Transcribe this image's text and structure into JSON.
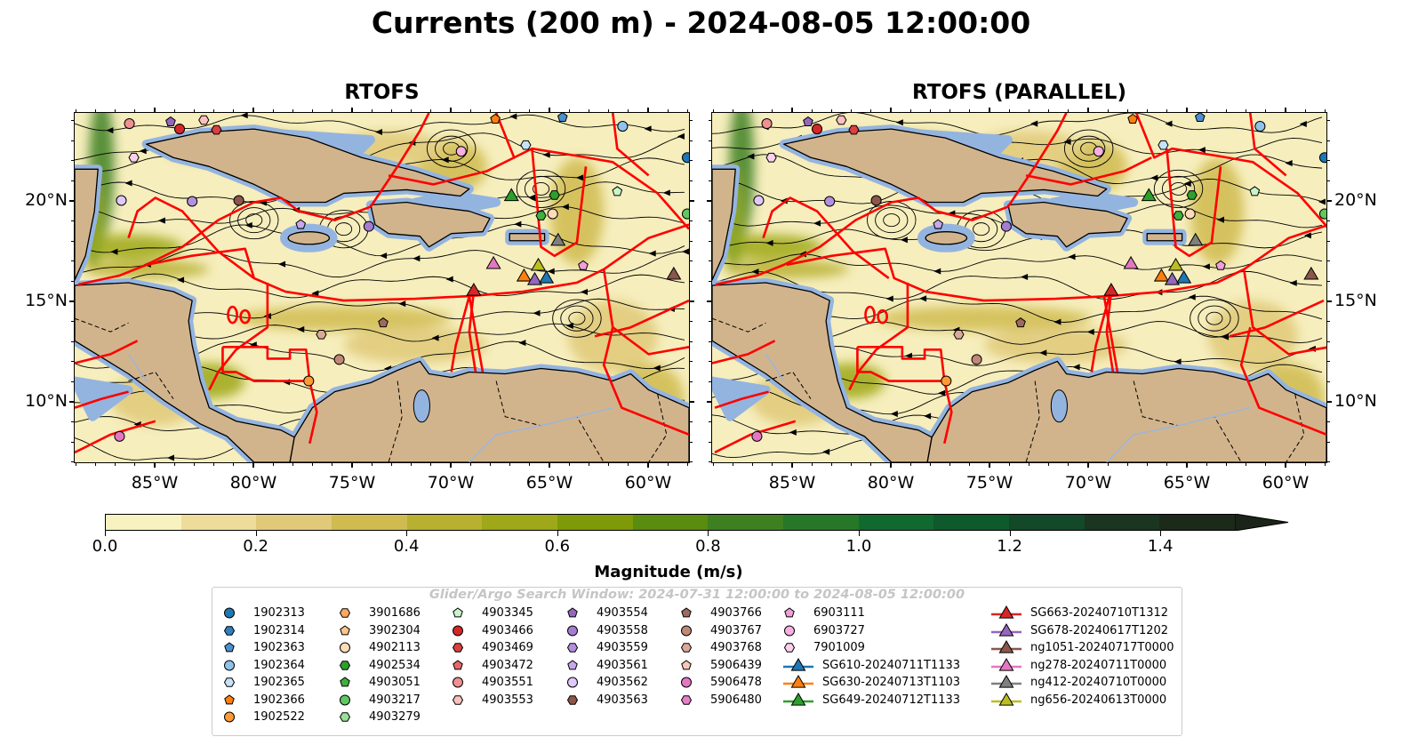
{
  "title": "Currents (200 m) - 2024-08-05 12:00:00",
  "panels": [
    {
      "title": "RTOFS"
    },
    {
      "title": "RTOFS (PARALLEL)"
    }
  ],
  "lon_labels": [
    "85°W",
    "80°W",
    "75°W",
    "70°W",
    "65°W",
    "60°W"
  ],
  "lat_labels": [
    "20°N",
    "15°N",
    "10°N"
  ],
  "colorbar": {
    "label": "Magnitude (m/s)",
    "ticks": [
      "0.0",
      "0.2",
      "0.4",
      "0.6",
      "0.8",
      "1.0",
      "1.2",
      "1.4"
    ],
    "range": [
      0,
      1.5
    ],
    "extend": "max",
    "colors": [
      "#f8f2c0",
      "#eedd9a",
      "#e0c978",
      "#d0bb50",
      "#b8b030",
      "#9ea818",
      "#7e9a08",
      "#5a8c10",
      "#3e8020",
      "#267828",
      "#106a30",
      "#0e5a2c",
      "#134828",
      "#1a3620",
      "#1c2a1a"
    ],
    "extend_color": "#1a2418"
  },
  "map_colors": {
    "ocean": "#f6eebd",
    "land": "#d2b48c",
    "shelf": "#94b4e0",
    "boundaries": "#ff0000"
  },
  "legend": {
    "watermark": "Glider/Argo Search Window: 2024-07-31 12:00:00 to 2024-08-05 12:00:00",
    "columns": [
      [
        {
          "label": "1902313",
          "marker": "circle",
          "color": "#1f77b4"
        },
        {
          "label": "1902314",
          "marker": "hexagon",
          "color": "#2f7fc1"
        },
        {
          "label": "1902363",
          "marker": "pentagon",
          "color": "#4a90d0"
        },
        {
          "label": "1902364",
          "marker": "circle",
          "color": "#8fc3ea"
        },
        {
          "label": "1902365",
          "marker": "hexagon",
          "color": "#c5e3f8"
        },
        {
          "label": "1902366",
          "marker": "pentagon",
          "color": "#ff7f0e"
        },
        {
          "label": "1902522",
          "marker": "circle",
          "color": "#ff9a35"
        }
      ],
      [
        {
          "label": "3901686",
          "marker": "hexagon",
          "color": "#ffa860"
        },
        {
          "label": "3902304",
          "marker": "pentagon",
          "color": "#ffc488"
        },
        {
          "label": "4902113",
          "marker": "circle",
          "color": "#ffdcb8"
        },
        {
          "label": "4902534",
          "marker": "hexagon",
          "color": "#2ca02c"
        },
        {
          "label": "4903051",
          "marker": "pentagon",
          "color": "#3fb03f"
        },
        {
          "label": "4903217",
          "marker": "circle",
          "color": "#60c860"
        },
        {
          "label": "4903279",
          "marker": "hexagon",
          "color": "#98e098"
        }
      ],
      [
        {
          "label": "4903345",
          "marker": "pentagon",
          "color": "#c8f5c8"
        },
        {
          "label": "4903466",
          "marker": "circle",
          "color": "#d62728"
        },
        {
          "label": "4903469",
          "marker": "hexagon",
          "color": "#dc4040"
        },
        {
          "label": "4903472",
          "marker": "pentagon",
          "color": "#e86868"
        },
        {
          "label": "4903551",
          "marker": "circle",
          "color": "#f09090"
        },
        {
          "label": "4903553",
          "marker": "hexagon",
          "color": "#fcc0c0"
        }
      ],
      [
        {
          "label": "4903554",
          "marker": "pentagon",
          "color": "#9467bd"
        },
        {
          "label": "4903558",
          "marker": "circle",
          "color": "#a47cd0"
        },
        {
          "label": "4903559",
          "marker": "hexagon",
          "color": "#b490dc"
        },
        {
          "label": "4903561",
          "marker": "pentagon",
          "color": "#c8a8ea"
        },
        {
          "label": "4903562",
          "marker": "circle",
          "color": "#e0c8f8"
        },
        {
          "label": "4903563",
          "marker": "hexagon",
          "color": "#8c564b"
        }
      ],
      [
        {
          "label": "4903766",
          "marker": "pentagon",
          "color": "#9e6a5e"
        },
        {
          "label": "4903767",
          "marker": "circle",
          "color": "#c08878"
        },
        {
          "label": "4903768",
          "marker": "hexagon",
          "color": "#daa898"
        },
        {
          "label": "5906439",
          "marker": "pentagon",
          "color": "#f8c8b8"
        },
        {
          "label": "5906478",
          "marker": "circle",
          "color": "#e377c2"
        },
        {
          "label": "5906480",
          "marker": "hexagon",
          "color": "#e880c8"
        }
      ],
      [
        {
          "label": "6903111",
          "marker": "pentagon",
          "color": "#f0a0d8"
        },
        {
          "label": "6903727",
          "marker": "circle",
          "color": "#f8b0e0"
        },
        {
          "label": "7901009",
          "marker": "hexagon",
          "color": "#fcd0ec"
        },
        {
          "label": "SG610-20240711T1133",
          "marker": "triangle",
          "color": "#1f77b4"
        },
        {
          "label": "SG630-20240713T1103",
          "marker": "triangle",
          "color": "#ff7f0e"
        },
        {
          "label": "SG649-20240712T1133",
          "marker": "triangle",
          "color": "#2ca02c"
        }
      ],
      [
        {
          "label": "SG663-20240710T1312",
          "marker": "triangle",
          "color": "#d62728"
        },
        {
          "label": "SG678-20240617T1202",
          "marker": "triangle",
          "color": "#9467bd"
        },
        {
          "label": "ng1051-20240717T0000",
          "marker": "triangle",
          "color": "#8c564b"
        },
        {
          "label": "ng278-20240711T0000",
          "marker": "triangle",
          "color": "#e377c2"
        },
        {
          "label": "ng412-20240710T0000",
          "marker": "triangle",
          "color": "#7f7f7f"
        },
        {
          "label": "ng656-20240613T0000",
          "marker": "triangle",
          "color": "#bcbd22"
        }
      ]
    ]
  }
}
